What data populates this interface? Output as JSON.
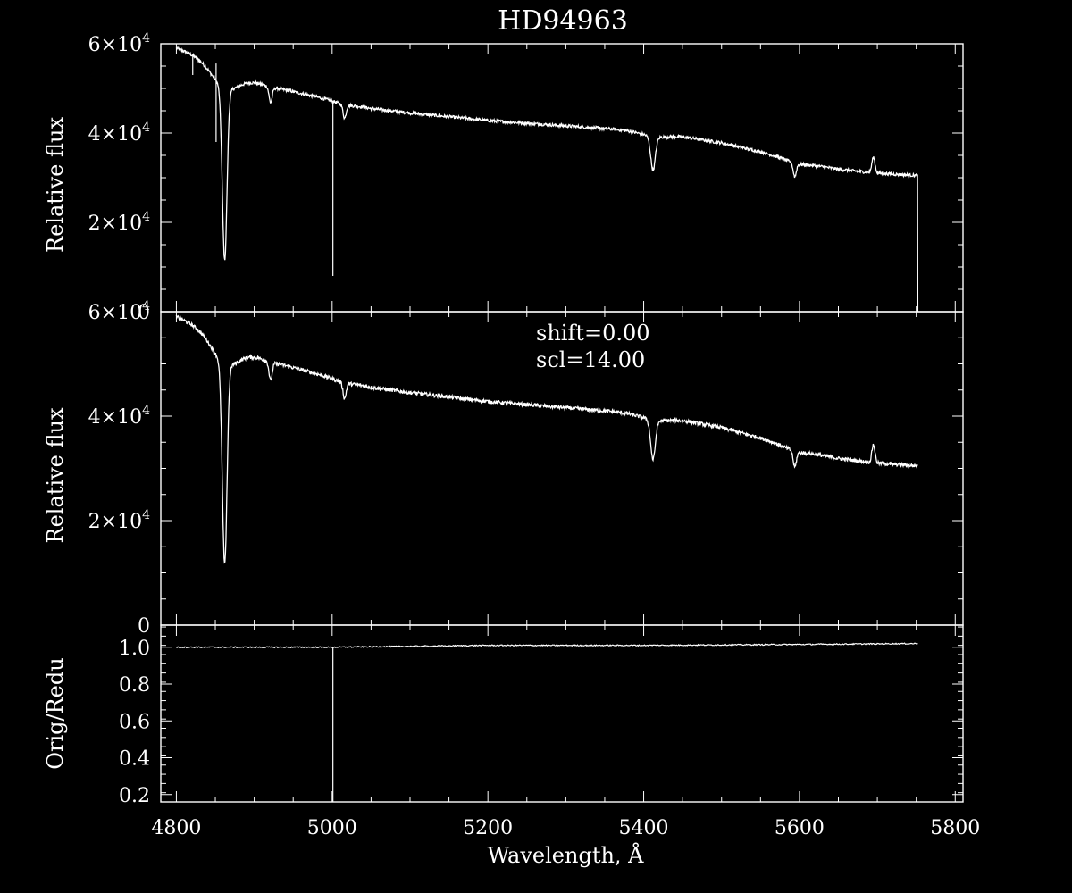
{
  "chart_data": {
    "title": "HD94963",
    "xlabel": "Wavelength, Å",
    "xlim": [
      4780,
      5810
    ],
    "x_ticks": [
      4800,
      5000,
      5200,
      5400,
      5600,
      5800
    ],
    "x_tick_labels": [
      "4800",
      "5000",
      "5200",
      "5400",
      "5600",
      "5800"
    ],
    "panels": [
      {
        "type": "line",
        "ylabel": "Relative flux",
        "ylim": [
          0,
          60000
        ],
        "y_ticks": [
          0,
          20000,
          40000,
          60000
        ],
        "y_tick_labels": [
          "0",
          "2×10^4",
          "4×10^4",
          "6×10^4"
        ],
        "annotations": [],
        "continuum": [
          [
            4800,
            59000
          ],
          [
            4840,
            56500
          ],
          [
            4870,
            54000
          ],
          [
            4900,
            51800
          ],
          [
            4950,
            49300
          ],
          [
            5000,
            47300
          ],
          [
            5050,
            45500
          ],
          [
            5100,
            44500
          ],
          [
            5200,
            42800
          ],
          [
            5300,
            41600
          ],
          [
            5400,
            40400
          ],
          [
            5450,
            39200
          ],
          [
            5500,
            37800
          ],
          [
            5550,
            35800
          ],
          [
            5600,
            33300
          ],
          [
            5650,
            31900
          ],
          [
            5700,
            31000
          ],
          [
            5750,
            30500
          ]
        ],
        "absorption_lines": [
          [
            4862,
            38500,
            3
          ],
          [
            4921,
            3500,
            2
          ],
          [
            5016,
            3000,
            2
          ],
          [
            5412,
            7500,
            3
          ],
          [
            5594,
            3000,
            2
          ]
        ],
        "emission_lines": [
          [
            5695,
            3500,
            2
          ]
        ],
        "spikes": [
          [
            5001,
            8000
          ],
          [
            4821,
            53000
          ],
          [
            4851,
            38000
          ]
        ],
        "end_drop": 5752
      },
      {
        "type": "line",
        "ylabel": "Relative flux",
        "ylim": [
          0,
          60000
        ],
        "y_ticks": [
          0,
          20000,
          40000,
          60000
        ],
        "y_tick_labels": [
          "0",
          "2×10^4",
          "4×10^4",
          "6×10^4"
        ],
        "annotations": [
          "shift=0.00",
          "scl=14.00"
        ],
        "continuum": [
          [
            4800,
            59000
          ],
          [
            4840,
            56500
          ],
          [
            4870,
            54000
          ],
          [
            4900,
            51800
          ],
          [
            4950,
            49300
          ],
          [
            5000,
            47300
          ],
          [
            5050,
            45500
          ],
          [
            5100,
            44500
          ],
          [
            5200,
            42800
          ],
          [
            5300,
            41600
          ],
          [
            5400,
            40400
          ],
          [
            5450,
            39200
          ],
          [
            5500,
            37800
          ],
          [
            5550,
            35800
          ],
          [
            5600,
            33300
          ],
          [
            5650,
            31900
          ],
          [
            5700,
            31000
          ],
          [
            5750,
            30500
          ]
        ],
        "absorption_lines": [
          [
            4862,
            38500,
            3
          ],
          [
            4921,
            3500,
            2
          ],
          [
            5016,
            3000,
            2
          ],
          [
            5412,
            7500,
            3
          ],
          [
            5594,
            3000,
            2
          ]
        ],
        "emission_lines": [
          [
            5695,
            3500,
            2
          ]
        ],
        "spikes": [],
        "end_drop": null
      },
      {
        "type": "line",
        "ylabel": "Orig/Redu",
        "ylim": [
          0.16,
          1.12
        ],
        "y_ticks": [
          0.2,
          0.4,
          0.6,
          0.8,
          1.0
        ],
        "y_tick_labels": [
          "0.2",
          "0.4",
          "0.6",
          "0.8",
          "1.0"
        ],
        "annotations": [],
        "ratio": [
          [
            4800,
            1.0
          ],
          [
            5000,
            1.0
          ],
          [
            5200,
            1.01
          ],
          [
            5400,
            1.01
          ],
          [
            5600,
            1.015
          ],
          [
            5752,
            1.02
          ]
        ],
        "spikes": [
          [
            5001,
            0.0
          ]
        ]
      }
    ]
  }
}
